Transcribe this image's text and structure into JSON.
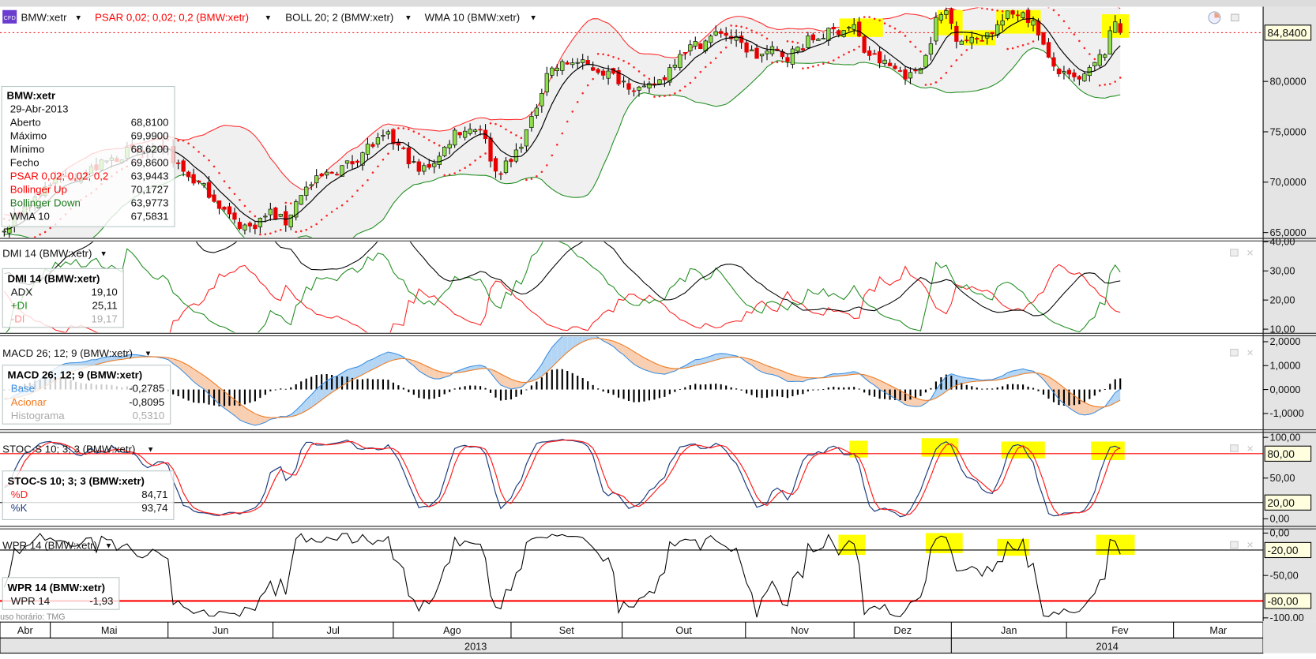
{
  "legend": {
    "instrument": "BMW:xetr",
    "cfd_badge": "CFD",
    "psar": "PSAR 0,02; 0,02; 0,2 (BMW:xetr)",
    "boll": "BOLL 20; 2 (BMW:xetr)",
    "wma": "WMA 10 (BMW:xetr)",
    "dropdown_glyph": "▼"
  },
  "colors": {
    "up_candle": "#8ee04a",
    "down_candle": "#e80000",
    "boll_up": "#ff2a2a",
    "boll_down": "#1e8c1e",
    "psar": "#ff2020",
    "wma": "#000000",
    "plus_di": "#1e8c1e",
    "minus_di": "#ff2020",
    "adx": "#000000",
    "macd_base": "#3a8ee0",
    "macd_signal": "#f07a20",
    "stoc_d": "#ff1a1a",
    "stoc_k": "#1a3a7a",
    "highlight": "#ffff00",
    "axis_bg": "#e4e4e4",
    "label_bg": "#ffffe0"
  },
  "main_info": {
    "title": "BMW:xetr",
    "date": "29-Abr-2013",
    "rows": [
      {
        "label": "Aberto",
        "value": "68,8100",
        "color": "#111111"
      },
      {
        "label": "Máximo",
        "value": "69,9900",
        "color": "#111111"
      },
      {
        "label": "Mínimo",
        "value": "68,6200",
        "color": "#111111"
      },
      {
        "label": "Fecho",
        "value": "69,8600",
        "color": "#111111"
      },
      {
        "label": "PSAR 0,02; 0,02; 0,2",
        "value": "63,9443",
        "color": "#ff0000"
      },
      {
        "label": "Bollinger Up",
        "value": "70,1727",
        "color": "#ff0000"
      },
      {
        "label": "Bollinger Down",
        "value": "63,9773",
        "color": "#1e7a1e"
      },
      {
        "label": "WMA 10",
        "value": "67,5831",
        "color": "#111111"
      }
    ]
  },
  "panels": {
    "dmi": {
      "legend": "DMI 14 (BMW:xetr)",
      "info_title": "DMI 14 (BMW:xetr)",
      "rows": [
        {
          "label": "ADX",
          "value": "19,10",
          "color": "#111111"
        },
        {
          "label": "+DI",
          "value": "25,11",
          "color": "#1e8c1e"
        },
        {
          "label": "-DI",
          "value": "19,17",
          "color": "#ff9090"
        }
      ]
    },
    "macd": {
      "legend": "MACD 26; 12; 9 (BMW:xetr)",
      "info_title": "MACD 26; 12; 9 (BMW:xetr)",
      "rows": [
        {
          "label": "Base",
          "value": "-0,2785",
          "color": "#3a8ee0"
        },
        {
          "label": "Acionar",
          "value": "-0,8095",
          "color": "#f07a20"
        },
        {
          "label": "Histograma",
          "value": "0,5310",
          "color": "#aaaaaa"
        }
      ]
    },
    "stoc": {
      "legend": "STOC-S 10; 3; 3 (BMW:xetr)",
      "info_title": "STOC-S 10; 3; 3 (BMW:xetr)",
      "rows": [
        {
          "label": "%D",
          "value": "84,71",
          "color": "#ff1a1a"
        },
        {
          "label": "%K",
          "value": "93,74",
          "color": "#1a3a7a"
        }
      ]
    },
    "wpr": {
      "legend": "WPR 14 (BMW:xetr)",
      "info_title": "WPR 14 (BMW:xetr)",
      "rows": [
        {
          "label": "WPR 14",
          "value": "-1,93",
          "color": "#111111"
        }
      ]
    }
  },
  "axes": {
    "main": {
      "ticks": [
        {
          "label": "80,0000",
          "value": 80
        },
        {
          "label": "75,0000",
          "value": 75
        },
        {
          "label": "70,0000",
          "value": 70
        },
        {
          "label": "65,0000",
          "value": 65
        }
      ],
      "last_price_label": "84,8400",
      "last_price": 84.84
    },
    "dmi": {
      "ticks": [
        {
          "label": "40,00",
          "value": 40
        },
        {
          "label": "30,00",
          "value": 30
        },
        {
          "label": "20,00",
          "value": 20
        },
        {
          "label": "10,00",
          "value": 10
        }
      ]
    },
    "macd": {
      "ticks": [
        {
          "label": "2,0000",
          "value": 2
        },
        {
          "label": "1,0000",
          "value": 1
        },
        {
          "label": "0,0000",
          "value": 0
        },
        {
          "label": "-1,0000",
          "value": -1
        }
      ]
    },
    "stoc": {
      "ticks": [
        {
          "label": "100,00",
          "value": 100
        },
        {
          "label": "50,00",
          "value": 50
        },
        {
          "label": "0,00",
          "value": 0
        }
      ],
      "levels": [
        {
          "label": "80,00",
          "value": 80,
          "color": "#ff0000"
        },
        {
          "label": "20,00",
          "value": 20,
          "color": "#000000"
        }
      ]
    },
    "wpr": {
      "ticks": [
        {
          "label": "0,00",
          "value": 0
        },
        {
          "label": "-50,00",
          "value": -50
        },
        {
          "label": "-100,00",
          "value": -100
        }
      ],
      "levels": [
        {
          "label": "-20,00",
          "value": -20,
          "color": "#000000"
        },
        {
          "label": "-80,00",
          "value": -80,
          "color": "#ff0000"
        }
      ]
    }
  },
  "time_axis": {
    "timezone": "Fuso horário: TMG",
    "months": [
      {
        "label": "Abr",
        "start_day": -1
      },
      {
        "label": "Mai",
        "start_day": 9
      },
      {
        "label": "Jun",
        "start_day": 32
      },
      {
        "label": "Jul",
        "start_day": 52.5
      },
      {
        "label": "Ago",
        "start_day": 76
      },
      {
        "label": "Set",
        "start_day": 99
      },
      {
        "label": "Out",
        "start_day": 120.7
      },
      {
        "label": "Nov",
        "start_day": 144.8
      },
      {
        "label": "Dez",
        "start_day": 166
      },
      {
        "label": "Jan",
        "start_day": 185
      },
      {
        "label": "Fev",
        "start_day": 207.5
      },
      {
        "label": "Mar",
        "start_day": 228.4
      }
    ],
    "end_day": 246,
    "years": [
      {
        "label": "2013",
        "start_day": -1
      },
      {
        "label": "2014",
        "start_day": 185
      }
    ]
  },
  "chart_data": {
    "type": "candlestick",
    "title": "BMW:xetr",
    "price_keypoints_day_close": [
      [
        -40,
        68
      ],
      [
        -20,
        66.5
      ],
      [
        0,
        65
      ],
      [
        3,
        67
      ],
      [
        9,
        70
      ],
      [
        16,
        71
      ],
      [
        24,
        73
      ],
      [
        32,
        73
      ],
      [
        35,
        71
      ],
      [
        40,
        69
      ],
      [
        45,
        66
      ],
      [
        48,
        65.5
      ],
      [
        52,
        67
      ],
      [
        55,
        66
      ],
      [
        58,
        69
      ],
      [
        62,
        70.5
      ],
      [
        68,
        72
      ],
      [
        71,
        73.5
      ],
      [
        75,
        74.5
      ],
      [
        78,
        73
      ],
      [
        81,
        71
      ],
      [
        85,
        72.5
      ],
      [
        88,
        75
      ],
      [
        93,
        75.5
      ],
      [
        96,
        71
      ],
      [
        99,
        72
      ],
      [
        103,
        76
      ],
      [
        106,
        81
      ],
      [
        111,
        82
      ],
      [
        114,
        81.5
      ],
      [
        117,
        81
      ],
      [
        121,
        80
      ],
      [
        125,
        79
      ],
      [
        129,
        80.5
      ],
      [
        132,
        83
      ],
      [
        137,
        84
      ],
      [
        140,
        85
      ],
      [
        143,
        84
      ],
      [
        147,
        82.5
      ],
      [
        150,
        83
      ],
      [
        153,
        82.5
      ],
      [
        157,
        84
      ],
      [
        162,
        85
      ],
      [
        166,
        85.5
      ],
      [
        168,
        83
      ],
      [
        171,
        82
      ],
      [
        175,
        81
      ],
      [
        177,
        80.5
      ],
      [
        180,
        82.5
      ],
      [
        182,
        86
      ],
      [
        184,
        87
      ],
      [
        186,
        84.5
      ],
      [
        189,
        84
      ],
      [
        193,
        85
      ],
      [
        196,
        86.5
      ],
      [
        199,
        87
      ],
      [
        202,
        85
      ],
      [
        204,
        82
      ],
      [
        207,
        80.5
      ],
      [
        210,
        80
      ],
      [
        212,
        81
      ],
      [
        215,
        83
      ],
      [
        217,
        86
      ],
      [
        218,
        84.84
      ]
    ],
    "indicators": [
      "PSAR 0,02; 0,02; 0,2",
      "BOLL 20; 2",
      "WMA 10",
      "DMI 14",
      "MACD 26; 12; 9",
      "STOC-S 10; 3; 3",
      "WPR 14"
    ]
  }
}
